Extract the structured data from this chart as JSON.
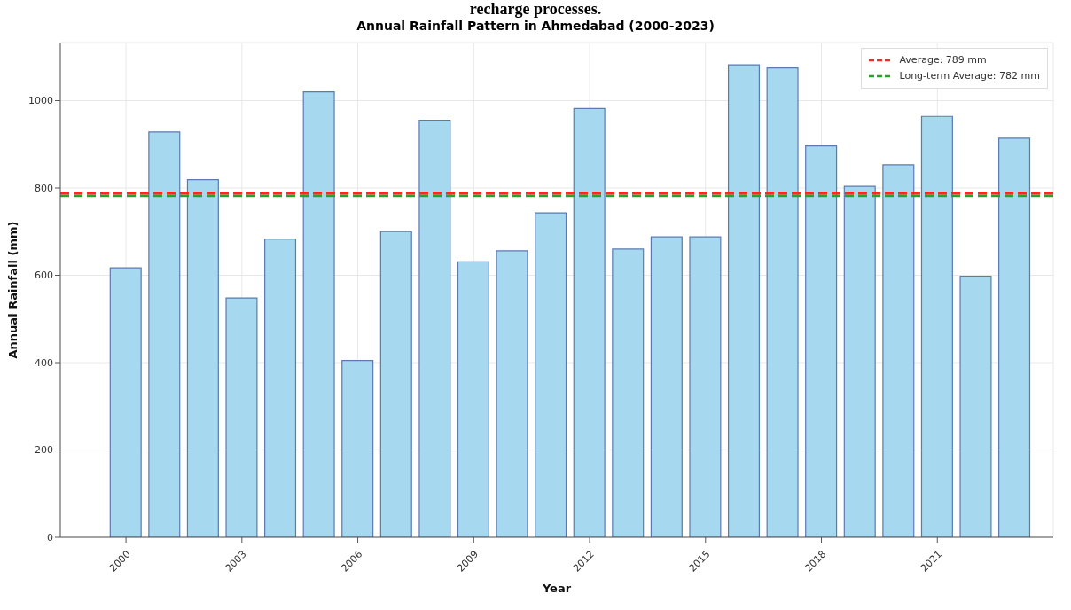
{
  "chart_data": {
    "type": "bar",
    "title": "Annual Rainfall Pattern in Ahmedabad (2000-2023)",
    "xlabel": "Year",
    "ylabel": "Annual Rainfall (mm)",
    "annotations": [
      "recharge processes."
    ],
    "x": [
      2000,
      2001,
      2002,
      2003,
      2004,
      2005,
      2006,
      2007,
      2008,
      2009,
      2010,
      2011,
      2012,
      2013,
      2014,
      2015,
      2016,
      2017,
      2018,
      2019,
      2020,
      2021,
      2022,
      2023
    ],
    "values": [
      617,
      928,
      819,
      548,
      683,
      1020,
      405,
      700,
      955,
      631,
      656,
      743,
      982,
      660,
      688,
      688,
      1082,
      1075,
      896,
      804,
      853,
      964,
      598,
      914
    ],
    "color": "#a6d8ef",
    "xlim": [
      1998.3,
      2024
    ],
    "xticks": [
      2000,
      2003,
      2006,
      2009,
      2012,
      2015,
      2018,
      2021
    ],
    "ylim": [
      0,
      1133
    ],
    "yticks": [
      0,
      200,
      400,
      600,
      800,
      1000
    ],
    "ref_lines": [
      {
        "axis": "y",
        "value": 789,
        "label": "Average: 789 mm",
        "color": "#e8302a",
        "line_style": "dashed"
      },
      {
        "axis": "y",
        "value": 782,
        "label": "Long-term Average: 782 mm",
        "color": "#2ca02c",
        "line_style": "dashed"
      }
    ],
    "grid": true,
    "legend": "top right"
  }
}
